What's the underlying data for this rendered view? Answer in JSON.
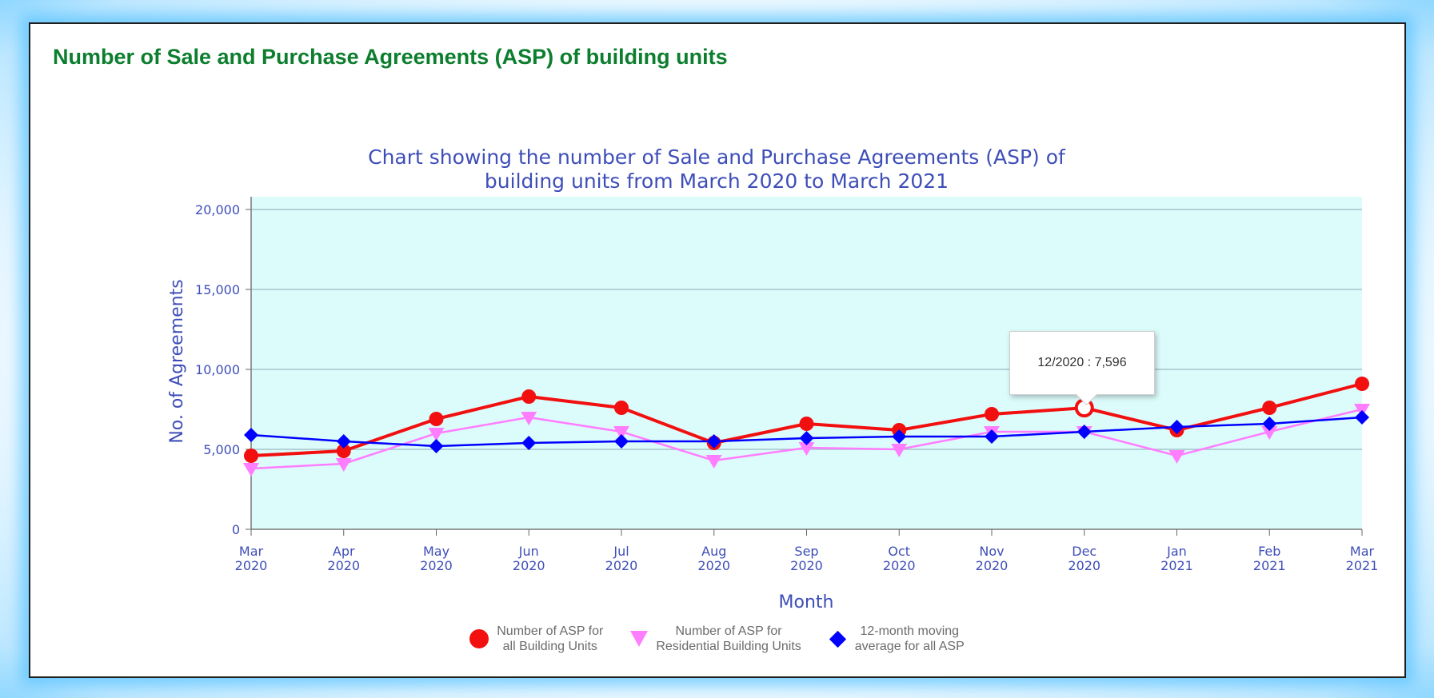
{
  "page": {
    "title": "Number of Sale and Purchase Agreements (ASP) of building units"
  },
  "tooltip": {
    "text": "12/2020 : 7,596"
  },
  "legend": {
    "all": "Number of ASP for\nall Building Units",
    "residential": "Number of ASP for\nResidential Building Units",
    "moving": "12-month moving\naverage for all ASP"
  },
  "chart_data": {
    "type": "line",
    "title_lines": [
      "Chart showing the number of Sale and Purchase Agreements (ASP) of",
      "building units from March 2020 to March 2021"
    ],
    "xlabel": "Month",
    "ylabel": "No. of Agreements",
    "ylim": [
      0,
      20000
    ],
    "yticks": [
      0,
      5000,
      10000,
      15000,
      20000
    ],
    "ytick_labels": [
      "0",
      "5,000",
      "10,000",
      "15,000",
      "20,000"
    ],
    "categories": [
      [
        "Mar",
        "2020"
      ],
      [
        "Apr",
        "2020"
      ],
      [
        "May",
        "2020"
      ],
      [
        "Jun",
        "2020"
      ],
      [
        "Jul",
        "2020"
      ],
      [
        "Aug",
        "2020"
      ],
      [
        "Sep",
        "2020"
      ],
      [
        "Oct",
        "2020"
      ],
      [
        "Nov",
        "2020"
      ],
      [
        "Dec",
        "2020"
      ],
      [
        "Jan",
        "2021"
      ],
      [
        "Feb",
        "2021"
      ],
      [
        "Mar",
        "2021"
      ]
    ],
    "series": [
      {
        "name": "Number of ASP for all Building Units",
        "marker": "circle",
        "color": "#f20f0f",
        "values": [
          4600,
          4900,
          6900,
          8300,
          7600,
          5400,
          6600,
          6200,
          7200,
          7596,
          6200,
          7600,
          9100
        ]
      },
      {
        "name": "Number of ASP for Residential Building Units",
        "marker": "triangle-down",
        "color": "#ff7dff",
        "values": [
          3800,
          4100,
          6000,
          7000,
          6100,
          4300,
          5100,
          5000,
          6100,
          6100,
          4600,
          6100,
          7500
        ]
      },
      {
        "name": "12-month moving average for all ASP",
        "marker": "diamond",
        "color": "#0000ff",
        "values": [
          5900,
          5500,
          5200,
          5400,
          5500,
          5500,
          5700,
          5800,
          5800,
          6100,
          6400,
          6600,
          7000
        ]
      }
    ],
    "highlight_index": 9,
    "plot_background": "#dcfcfc",
    "text_color": "#3e4eb8",
    "grid": true
  }
}
